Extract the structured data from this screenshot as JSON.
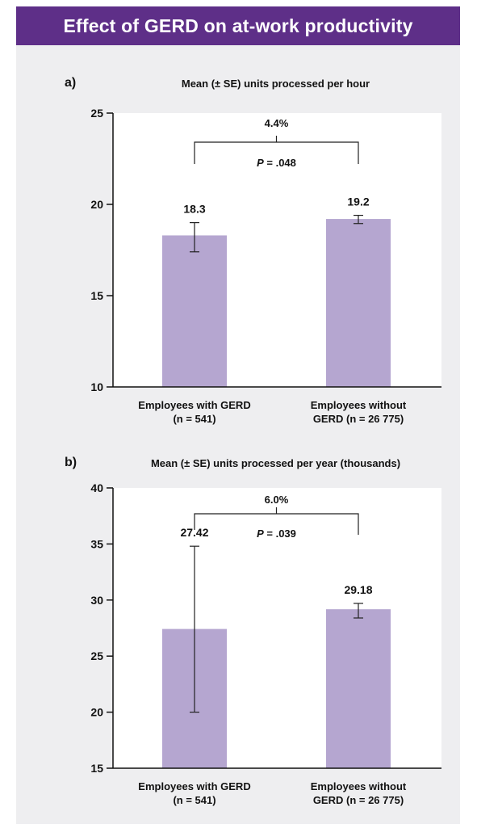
{
  "header": {
    "title": "Effect of GERD on at-work productivity"
  },
  "chart_data": [
    {
      "type": "bar",
      "panel": "a)",
      "title": "Mean (± SE) units processed per hour",
      "categories": [
        [
          "Employees with GERD",
          "(n = 541)"
        ],
        [
          "Employees without",
          "GERD (n = 26 775)"
        ]
      ],
      "values": [
        18.3,
        19.2
      ],
      "value_labels": [
        "18.3",
        "19.2"
      ],
      "error_low": [
        17.4,
        18.95
      ],
      "error_high": [
        19.0,
        19.4
      ],
      "ylim": [
        10,
        25
      ],
      "yticks": [
        10,
        15,
        20,
        25
      ],
      "difference_label": "4.4%",
      "p_label": [
        "P",
        " = .048"
      ],
      "bar_color": "#b5a6d0",
      "grid": false
    },
    {
      "type": "bar",
      "panel": "b)",
      "title": "Mean (± SE) units processed per year (thousands)",
      "categories": [
        [
          "Employees with GERD",
          "(n = 541)"
        ],
        [
          "Employees without",
          "GERD (n = 26 775)"
        ]
      ],
      "values": [
        27.42,
        29.18
      ],
      "value_labels": [
        "27.42",
        "29.18"
      ],
      "error_low": [
        20.0,
        28.4
      ],
      "error_high": [
        34.8,
        29.7
      ],
      "ylim": [
        15,
        40
      ],
      "yticks": [
        15,
        20,
        25,
        30,
        35,
        40
      ],
      "difference_label": "6.0%",
      "p_label": [
        "P",
        " = .039"
      ],
      "bar_color": "#b5a6d0",
      "grid": false
    }
  ]
}
